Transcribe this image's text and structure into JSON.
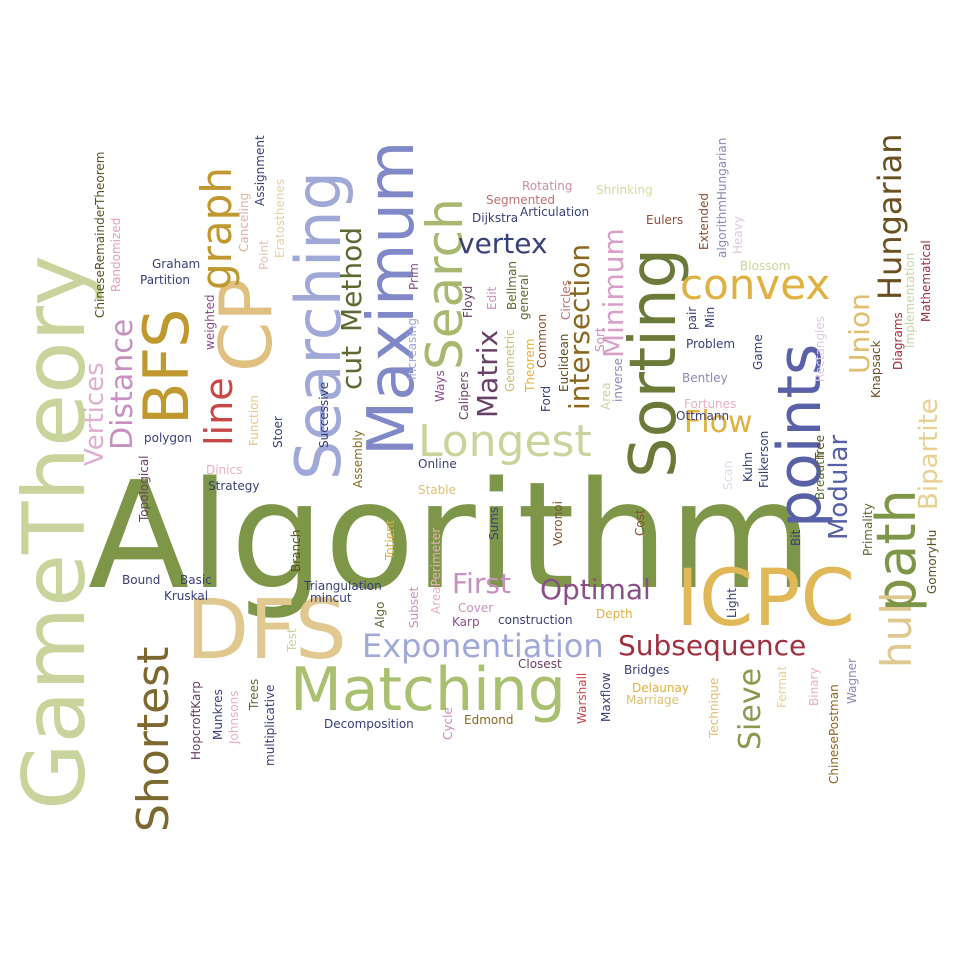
{
  "words": [
    {
      "text": "Algorithm",
      "color": "#7d9648",
      "rotated": false
    },
    {
      "text": "GameTheory",
      "color": "#c8d49c",
      "rotated": true
    },
    {
      "text": "DFS",
      "color": "#e0c890",
      "rotated": false
    },
    {
      "text": "ICPC",
      "color": "#e0b858",
      "rotated": false
    },
    {
      "text": "Matching",
      "color": "#a8c070",
      "rotated": false
    },
    {
      "text": "Sorting",
      "color": "#6b7a38",
      "rotated": true
    },
    {
      "text": "Searching",
      "color": "#a0a8d8",
      "rotated": true
    },
    {
      "text": "Maximum",
      "color": "#8088c8",
      "rotated": true
    },
    {
      "text": "points",
      "color": "#5860a8",
      "rotated": true
    },
    {
      "text": "path",
      "color": "#7d9648",
      "rotated": true
    },
    {
      "text": "CP",
      "color": "#e0c080",
      "rotated": true
    },
    {
      "text": "BFS",
      "color": "#c09830",
      "rotated": true
    },
    {
      "text": "Search",
      "color": "#a8b870",
      "rotated": true
    },
    {
      "text": "Shortest",
      "color": "#7d6830",
      "rotated": true
    },
    {
      "text": "Longest",
      "color": "#c8d49c",
      "rotated": false
    },
    {
      "text": "convex",
      "color": "#e0b040",
      "rotated": false
    },
    {
      "text": "Exponentiation",
      "color": "#a0a8d8",
      "rotated": false
    },
    {
      "text": "Subsequence",
      "color": "#a03040",
      "rotated": false
    },
    {
      "text": "Optimal",
      "color": "#8a4e8a",
      "rotated": false
    },
    {
      "text": "graph",
      "color": "#c09830",
      "rotated": true
    },
    {
      "text": "line",
      "color": "#c84848",
      "rotated": true
    },
    {
      "text": "hull",
      "color": "#e0c890",
      "rotated": true
    },
    {
      "text": "Distance",
      "color": "#c890c0",
      "rotated": true
    },
    {
      "text": "Vertices",
      "color": "#e0b0d0",
      "rotated": true
    },
    {
      "text": "Hungarian",
      "color": "#6b5020",
      "rotated": true
    },
    {
      "text": "Bipartite",
      "color": "#e8d090",
      "rotated": true
    },
    {
      "text": "Modular",
      "color": "#5860a8",
      "rotated": true
    },
    {
      "text": "Flow",
      "color": "#e0b040",
      "rotated": false
    },
    {
      "text": "First",
      "color": "#c890c0",
      "rotated": false
    },
    {
      "text": "vertex",
      "color": "#384078",
      "rotated": false
    },
    {
      "text": "intersection",
      "color": "#8a6820",
      "rotated": true
    },
    {
      "text": "Minimum",
      "color": "#d8a0c8",
      "rotated": true
    },
    {
      "text": "Matrix",
      "color": "#6a4068",
      "rotated": true
    },
    {
      "text": "Method",
      "color": "#5a6a30",
      "rotated": true
    },
    {
      "text": "cut",
      "color": "#5a6a30",
      "rotated": true
    },
    {
      "text": "Union",
      "color": "#e0c070",
      "rotated": true
    },
    {
      "text": "Sieve",
      "color": "#8a9a50",
      "rotated": true
    },
    {
      "text": "ChineseRemainderTheorem",
      "color": "#5a5020",
      "rotated": true
    },
    {
      "text": "Randomized",
      "color": "#e8a0b0",
      "rotated": true
    },
    {
      "text": "Graham",
      "color": "#384078",
      "rotated": false
    },
    {
      "text": "Partition",
      "color": "#384078",
      "rotated": false
    },
    {
      "text": "weighted",
      "color": "#8a4e8a",
      "rotated": true
    },
    {
      "text": "Assignment",
      "color": "#384078",
      "rotated": true
    },
    {
      "text": "Canceling",
      "color": "#e0b0a0",
      "rotated": true
    },
    {
      "text": "Point",
      "color": "#e8c0b0",
      "rotated": true
    },
    {
      "text": "Eratosthenes",
      "color": "#e8d0a0",
      "rotated": true
    },
    {
      "text": "Rotating",
      "color": "#c890a0",
      "rotated": false
    },
    {
      "text": "Segmented",
      "color": "#c07070",
      "rotated": false
    },
    {
      "text": "Articulation",
      "color": "#384078",
      "rotated": false
    },
    {
      "text": "Shrinking",
      "color": "#d8d8a0",
      "rotated": false
    },
    {
      "text": "Dijkstra",
      "color": "#384078",
      "rotated": false
    },
    {
      "text": "Eulers",
      "color": "#8a4e30",
      "rotated": false
    },
    {
      "text": "Extended",
      "color": "#8a4e30",
      "rotated": true
    },
    {
      "text": "algorithmHungarian",
      "color": "#8a8ab8",
      "rotated": true
    },
    {
      "text": "Heavy",
      "color": "#e0c8e0",
      "rotated": true
    },
    {
      "text": "Blossom",
      "color": "#c8d49c",
      "rotated": false
    },
    {
      "text": "Mathematical",
      "color": "#a03040",
      "rotated": true
    },
    {
      "text": "Implementation",
      "color": "#c8d49c",
      "rotated": true
    },
    {
      "text": "Diagrams",
      "color": "#a03040",
      "rotated": true
    },
    {
      "text": "Knapsack",
      "color": "#6b5020",
      "rotated": true
    },
    {
      "text": "Rectangles",
      "color": "#e0c8e0",
      "rotated": true
    },
    {
      "text": "Prim",
      "color": "#8a4e8a",
      "rotated": true
    },
    {
      "text": "Floyd",
      "color": "#6a4068",
      "rotated": true
    },
    {
      "text": "Edit",
      "color": "#c890c0",
      "rotated": true
    },
    {
      "text": "Increasing",
      "color": "#a0a8d8",
      "rotated": true
    },
    {
      "text": "Ways",
      "color": "#8a4e8a",
      "rotated": true
    },
    {
      "text": "Calipers",
      "color": "#6a4068",
      "rotated": true
    },
    {
      "text": "Bellman",
      "color": "#5a6a30",
      "rotated": true
    },
    {
      "text": "Geometric",
      "color": "#c8c070",
      "rotated": true
    },
    {
      "text": "general",
      "color": "#5a6a30",
      "rotated": true
    },
    {
      "text": "Theorem",
      "color": "#e0b040",
      "rotated": true
    },
    {
      "text": "Common",
      "color": "#8a4e30",
      "rotated": true
    },
    {
      "text": "Circles",
      "color": "#c07070",
      "rotated": true
    },
    {
      "text": "Euclidean",
      "color": "#5a5020",
      "rotated": true
    },
    {
      "text": "Ford",
      "color": "#384078",
      "rotated": true
    },
    {
      "text": "Sort",
      "color": "#c890c0",
      "rotated": true
    },
    {
      "text": "Area",
      "color": "#c8d49c",
      "rotated": true
    },
    {
      "text": "inverse",
      "color": "#8a8ab8",
      "rotated": true
    },
    {
      "text": "pair",
      "color": "#384078",
      "rotated": true
    },
    {
      "text": "Min",
      "color": "#384078",
      "rotated": true
    },
    {
      "text": "Problem",
      "color": "#384078",
      "rotated": false
    },
    {
      "text": "Game",
      "color": "#384078",
      "rotated": true
    },
    {
      "text": "Bentley",
      "color": "#8a8ab8",
      "rotated": false
    },
    {
      "text": "Fortunes",
      "color": "#e8b0c0",
      "rotated": false
    },
    {
      "text": "Ottmann",
      "color": "#384078",
      "rotated": false
    },
    {
      "text": "Fulkerson",
      "color": "#384078",
      "rotated": true
    },
    {
      "text": "Kuhn",
      "color": "#384078",
      "rotated": true
    },
    {
      "text": "Scan",
      "color": "#d8d8e8",
      "rotated": true
    },
    {
      "text": "Tree",
      "color": "#5a5020",
      "rotated": true
    },
    {
      "text": "Breadth",
      "color": "#5a6a30",
      "rotated": true
    },
    {
      "text": "Primality",
      "color": "#5a6a30",
      "rotated": true
    },
    {
      "text": "GomoryHu",
      "color": "#5a5020",
      "rotated": true
    },
    {
      "text": "polygon",
      "color": "#384078",
      "rotated": false
    },
    {
      "text": "Function",
      "color": "#e8c880",
      "rotated": true
    },
    {
      "text": "Stoer",
      "color": "#384078",
      "rotated": true
    },
    {
      "text": "Successive",
      "color": "#384078",
      "rotated": true
    },
    {
      "text": "Assembly",
      "color": "#8a6820",
      "rotated": true
    },
    {
      "text": "Online",
      "color": "#384078",
      "rotated": false
    },
    {
      "text": "Stable",
      "color": "#e0c070",
      "rotated": false
    },
    {
      "text": "Sums",
      "color": "#384078",
      "rotated": true
    },
    {
      "text": "Voronoi",
      "color": "#8a4e30",
      "rotated": true
    },
    {
      "text": "Cost",
      "color": "#8a4e30",
      "rotated": true
    },
    {
      "text": "Light",
      "color": "#384078",
      "rotated": true
    },
    {
      "text": "Bit",
      "color": "#384078",
      "rotated": true
    },
    {
      "text": "Topological",
      "color": "#6a4068",
      "rotated": true
    },
    {
      "text": "Dinics",
      "color": "#e8b0c0",
      "rotated": false
    },
    {
      "text": "Strategy",
      "color": "#384078",
      "rotated": false
    },
    {
      "text": "Totient",
      "color": "#e0b040",
      "rotated": true
    },
    {
      "text": "Branch",
      "color": "#5a5020",
      "rotated": true
    },
    {
      "text": "AreaPerimeter",
      "color": "#e8b0c0",
      "rotated": true
    },
    {
      "text": "Bound",
      "color": "#384078",
      "rotated": false
    },
    {
      "text": "Basic",
      "color": "#384078",
      "rotated": false
    },
    {
      "text": "Kruskal",
      "color": "#384078",
      "rotated": false
    },
    {
      "text": "Triangulation",
      "color": "#384078",
      "rotated": false
    },
    {
      "text": "mincut",
      "color": "#384078",
      "rotated": false
    },
    {
      "text": "Subset",
      "color": "#c890c0",
      "rotated": true
    },
    {
      "text": "Cover",
      "color": "#c890c0",
      "rotated": false
    },
    {
      "text": "Karp",
      "color": "#8a4e8a",
      "rotated": false
    },
    {
      "text": "construction",
      "color": "#384078",
      "rotated": false
    },
    {
      "text": "Depth",
      "color": "#e0b040",
      "rotated": false
    },
    {
      "text": "Algo",
      "color": "#5a6a30",
      "rotated": true
    },
    {
      "text": "Test",
      "color": "#c8d49c",
      "rotated": true
    },
    {
      "text": "Closest",
      "color": "#6a4068",
      "rotated": false
    },
    {
      "text": "Bridges",
      "color": "#384078",
      "rotated": false
    },
    {
      "text": "Delaunay",
      "color": "#e0b040",
      "rotated": false
    },
    {
      "text": "Marriage",
      "color": "#e0c070",
      "rotated": false
    },
    {
      "text": "Warshall",
      "color": "#c84848",
      "rotated": true
    },
    {
      "text": "Maxflow",
      "color": "#384078",
      "rotated": true
    },
    {
      "text": "Technique",
      "color": "#e0c070",
      "rotated": true
    },
    {
      "text": "Fermat",
      "color": "#e8d090",
      "rotated": true
    },
    {
      "text": "Binary",
      "color": "#e8b0c0",
      "rotated": true
    },
    {
      "text": "Wagner",
      "color": "#8a8ab8",
      "rotated": true
    },
    {
      "text": "ChinesePostman",
      "color": "#8a6820",
      "rotated": true
    },
    {
      "text": "Munkres",
      "color": "#384078",
      "rotated": true
    },
    {
      "text": "HopcroftKarp",
      "color": "#6a4068",
      "rotated": true
    },
    {
      "text": "Johnsons",
      "color": "#e8b0c0",
      "rotated": true
    },
    {
      "text": "Trees",
      "color": "#5a6a30",
      "rotated": true
    },
    {
      "text": "multiplicative",
      "color": "#384078",
      "rotated": true
    },
    {
      "text": "Decomposition",
      "color": "#384078",
      "rotated": false
    },
    {
      "text": "Edmond",
      "color": "#8a6820",
      "rotated": false
    },
    {
      "text": "Cycle",
      "color": "#c890c0",
      "rotated": true
    }
  ]
}
